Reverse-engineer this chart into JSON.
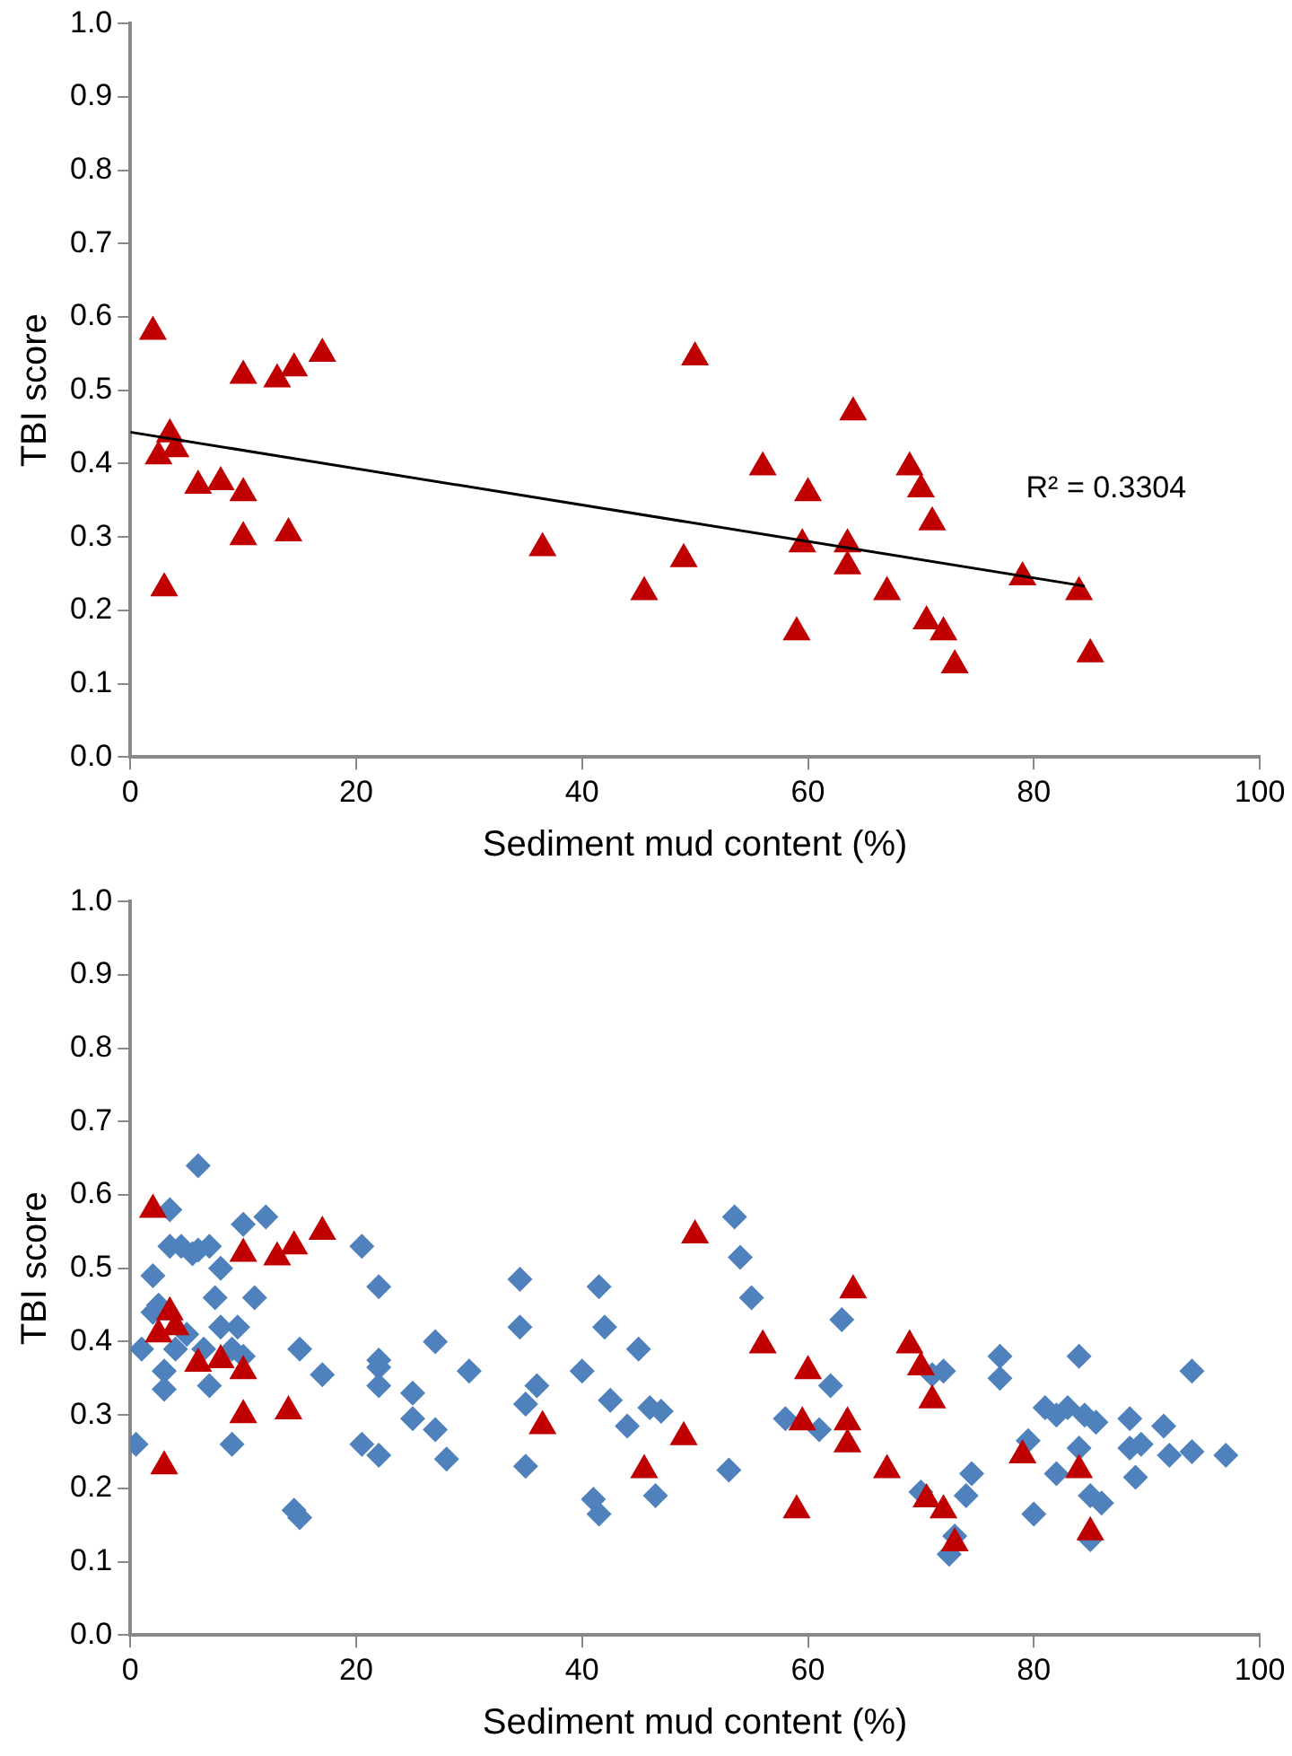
{
  "chart_data": [
    {
      "type": "scatter",
      "xlabel": "Sediment mud content (%)",
      "ylabel": "TBI score",
      "xlim": [
        0,
        100
      ],
      "xticks": [
        0,
        20,
        40,
        60,
        80,
        100
      ],
      "ylim": [
        0,
        1
      ],
      "yticks": [
        {
          "value": 0,
          "label": "0.0"
        },
        {
          "value": 0.1,
          "label": "0.1"
        },
        {
          "value": 0.2,
          "label": "0.2"
        },
        {
          "value": 0.3,
          "label": "0.3"
        },
        {
          "value": 0.4,
          "label": "0.4"
        },
        {
          "value": 0.5,
          "label": "0.5"
        },
        {
          "value": 0.6,
          "label": "0.6"
        },
        {
          "value": 0.7,
          "label": "0.7"
        },
        {
          "value": 0.8,
          "label": "0.8"
        },
        {
          "value": 0.9,
          "label": "0.9"
        },
        {
          "value": 1,
          "label": "1.0"
        }
      ],
      "grid": false,
      "legend": false,
      "annotations": [
        "R² = 0.3304"
      ],
      "series": [
        {
          "type": "scatter",
          "marker": "triangle",
          "color": "#c00000",
          "x": [
            2,
            2.5,
            3.5,
            4,
            3,
            6,
            8,
            10,
            10,
            10,
            13,
            14,
            14.5,
            17,
            36.5,
            45.5,
            49,
            50,
            56,
            59,
            59.5,
            60,
            63.5,
            63.5,
            64,
            67,
            69,
            70,
            70.5,
            71,
            72,
            73,
            79,
            84,
            85
          ],
          "values": [
            0.58,
            0.41,
            0.44,
            0.42,
            0.23,
            0.37,
            0.375,
            0.52,
            0.36,
            0.3,
            0.515,
            0.305,
            0.53,
            0.55,
            0.285,
            0.225,
            0.27,
            0.545,
            0.395,
            0.17,
            0.29,
            0.36,
            0.29,
            0.26,
            0.47,
            0.225,
            0.395,
            0.365,
            0.185,
            0.32,
            0.17,
            0.125,
            0.245,
            0.225,
            0.14
          ]
        },
        {
          "type": "line",
          "marker": "none",
          "color": "#000000",
          "x": [
            0,
            84.5
          ],
          "values": [
            0.443,
            0.233
          ]
        }
      ]
    },
    {
      "type": "scatter",
      "xlabel": "Sediment mud content (%)",
      "ylabel": "TBI score",
      "xlim": [
        0,
        100
      ],
      "xticks": [
        0,
        20,
        40,
        60,
        80,
        100
      ],
      "ylim": [
        0,
        1
      ],
      "yticks": [
        {
          "value": 0,
          "label": "0.0"
        },
        {
          "value": 0.1,
          "label": "0.1"
        },
        {
          "value": 0.2,
          "label": "0.2"
        },
        {
          "value": 0.3,
          "label": "0.3"
        },
        {
          "value": 0.4,
          "label": "0.4"
        },
        {
          "value": 0.5,
          "label": "0.5"
        },
        {
          "value": 0.6,
          "label": "0.6"
        },
        {
          "value": 0.7,
          "label": "0.7"
        },
        {
          "value": 0.8,
          "label": "0.8"
        },
        {
          "value": 0.9,
          "label": "0.9"
        },
        {
          "value": 1,
          "label": "1.0"
        }
      ],
      "grid": false,
      "legend": false,
      "series": [
        {
          "type": "scatter",
          "marker": "diamond",
          "color": "#4f81bd",
          "x": [
            0.5,
            1,
            2,
            2,
            2.5,
            3,
            3,
            3.5,
            3.5,
            4,
            4.5,
            5,
            5.5,
            6,
            6,
            6.5,
            7,
            7,
            7.5,
            8,
            8,
            9,
            9,
            9.5,
            10,
            10,
            11,
            12,
            14.5,
            15,
            15,
            17,
            20.5,
            20.5,
            22,
            22,
            22,
            22,
            22,
            25,
            25,
            27,
            27,
            28,
            30,
            34.5,
            34.5,
            35,
            35,
            36,
            40,
            41,
            41.5,
            41.5,
            42,
            42.5,
            44,
            45,
            46,
            46.5,
            47,
            53,
            53.5,
            54,
            55,
            58,
            61,
            62,
            63,
            70,
            71,
            72,
            72.5,
            73,
            74,
            74.5,
            77,
            77,
            79.5,
            80,
            81,
            82,
            82,
            83,
            84,
            84,
            84.5,
            85,
            85,
            85.5,
            86,
            88.5,
            88.5,
            89,
            89.5,
            91.5,
            92,
            94,
            94,
            97
          ],
          "values": [
            0.26,
            0.39,
            0.49,
            0.44,
            0.45,
            0.36,
            0.335,
            0.58,
            0.53,
            0.39,
            0.53,
            0.41,
            0.52,
            0.64,
            0.525,
            0.39,
            0.34,
            0.53,
            0.46,
            0.5,
            0.42,
            0.39,
            0.26,
            0.42,
            0.56,
            0.38,
            0.46,
            0.57,
            0.17,
            0.16,
            0.39,
            0.355,
            0.53,
            0.26,
            0.375,
            0.365,
            0.475,
            0.34,
            0.245,
            0.33,
            0.295,
            0.4,
            0.28,
            0.24,
            0.36,
            0.485,
            0.42,
            0.315,
            0.23,
            0.34,
            0.36,
            0.185,
            0.165,
            0.475,
            0.42,
            0.32,
            0.285,
            0.39,
            0.31,
            0.19,
            0.305,
            0.225,
            0.57,
            0.515,
            0.46,
            0.295,
            0.28,
            0.34,
            0.43,
            0.195,
            0.355,
            0.36,
            0.11,
            0.135,
            0.19,
            0.22,
            0.38,
            0.35,
            0.265,
            0.165,
            0.31,
            0.22,
            0.3,
            0.31,
            0.38,
            0.255,
            0.3,
            0.19,
            0.13,
            0.29,
            0.18,
            0.295,
            0.255,
            0.215,
            0.26,
            0.285,
            0.245,
            0.36,
            0.25,
            0.245
          ]
        },
        {
          "type": "scatter",
          "marker": "triangle",
          "color": "#c00000",
          "x": [
            2,
            2.5,
            3.5,
            4,
            3,
            6,
            8,
            10,
            10,
            10,
            13,
            14,
            14.5,
            17,
            36.5,
            45.5,
            49,
            50,
            56,
            59,
            59.5,
            60,
            63.5,
            63.5,
            64,
            67,
            69,
            70,
            70.5,
            71,
            72,
            73,
            79,
            84,
            85
          ],
          "values": [
            0.58,
            0.41,
            0.44,
            0.42,
            0.23,
            0.37,
            0.375,
            0.52,
            0.36,
            0.3,
            0.515,
            0.305,
            0.53,
            0.55,
            0.285,
            0.225,
            0.27,
            0.545,
            0.395,
            0.17,
            0.29,
            0.36,
            0.29,
            0.26,
            0.47,
            0.225,
            0.395,
            0.365,
            0.185,
            0.32,
            0.17,
            0.125,
            0.245,
            0.225,
            0.14
          ]
        }
      ]
    }
  ]
}
